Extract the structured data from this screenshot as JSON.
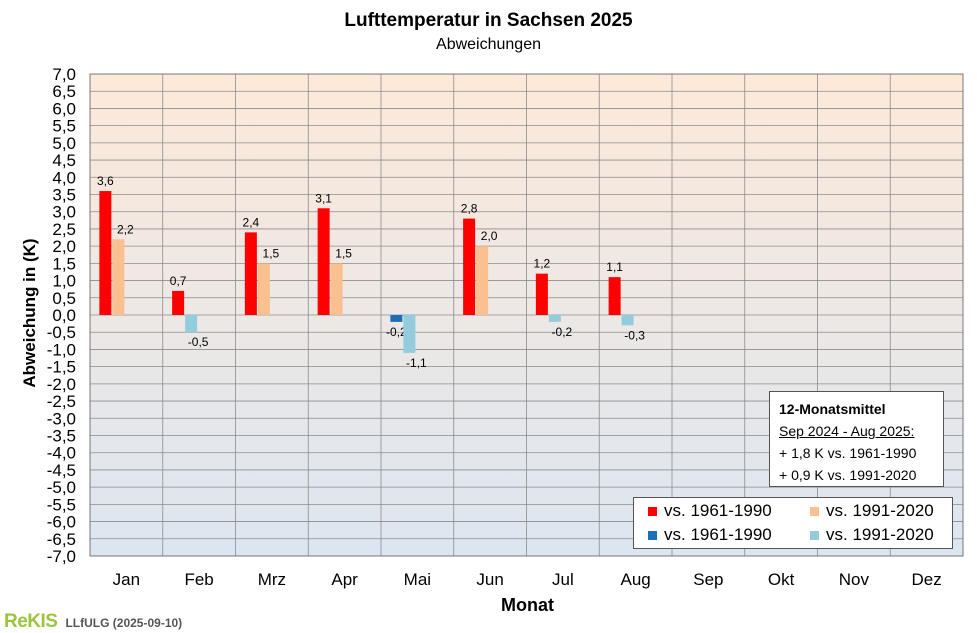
{
  "chart_data": {
    "type": "bar",
    "title": "Lufttemperatur in Sachsen 2025",
    "subtitle": "Abweichungen",
    "xlabel": "Monat",
    "ylabel": "Abweichung in (K)",
    "ylim": [
      -7.0,
      7.0
    ],
    "ytick_step": 0.5,
    "decimal_separator": ",",
    "categories": [
      "Jan",
      "Feb",
      "Mrz",
      "Apr",
      "Mai",
      "Jun",
      "Jul",
      "Aug",
      "Sep",
      "Okt",
      "Nov",
      "Dez"
    ],
    "series": [
      {
        "name": "vs. 1961-1990",
        "values": [
          3.6,
          0.7,
          2.4,
          3.1,
          -0.2,
          2.8,
          1.2,
          1.1,
          null,
          null,
          null,
          null
        ],
        "color_positive": "#ff0000",
        "color_negative": "#1a6fb5"
      },
      {
        "name": "vs. 1991-2020",
        "values": [
          2.2,
          -0.5,
          1.5,
          1.5,
          -1.1,
          2.0,
          -0.2,
          -0.3,
          null,
          null,
          null,
          null
        ],
        "color_positive": "#fac090",
        "color_negative": "#93cddd"
      }
    ],
    "background_gradient": {
      "top": "#fde9d9",
      "bottom": "#dce6f1"
    },
    "grid": true
  },
  "legend": {
    "entries": [
      {
        "label": "vs. 1961-1990",
        "color": "#ff0000"
      },
      {
        "label": "vs. 1991-2020",
        "color": "#fac090"
      },
      {
        "label": "vs. 1961-1990",
        "color": "#1a6fb5"
      },
      {
        "label": "vs. 1991-2020",
        "color": "#93cddd"
      }
    ]
  },
  "infobox": {
    "title": "12-Monatsmittel",
    "period": "Sep 2024 - Aug 2025:",
    "line1": "+ 1,8 K vs. 1961-1990",
    "line2": "+ 0,9 K vs. 1991-2020"
  },
  "footer": {
    "logo": "ReKIS",
    "text": "LLfULG  (2025-09-10)"
  }
}
